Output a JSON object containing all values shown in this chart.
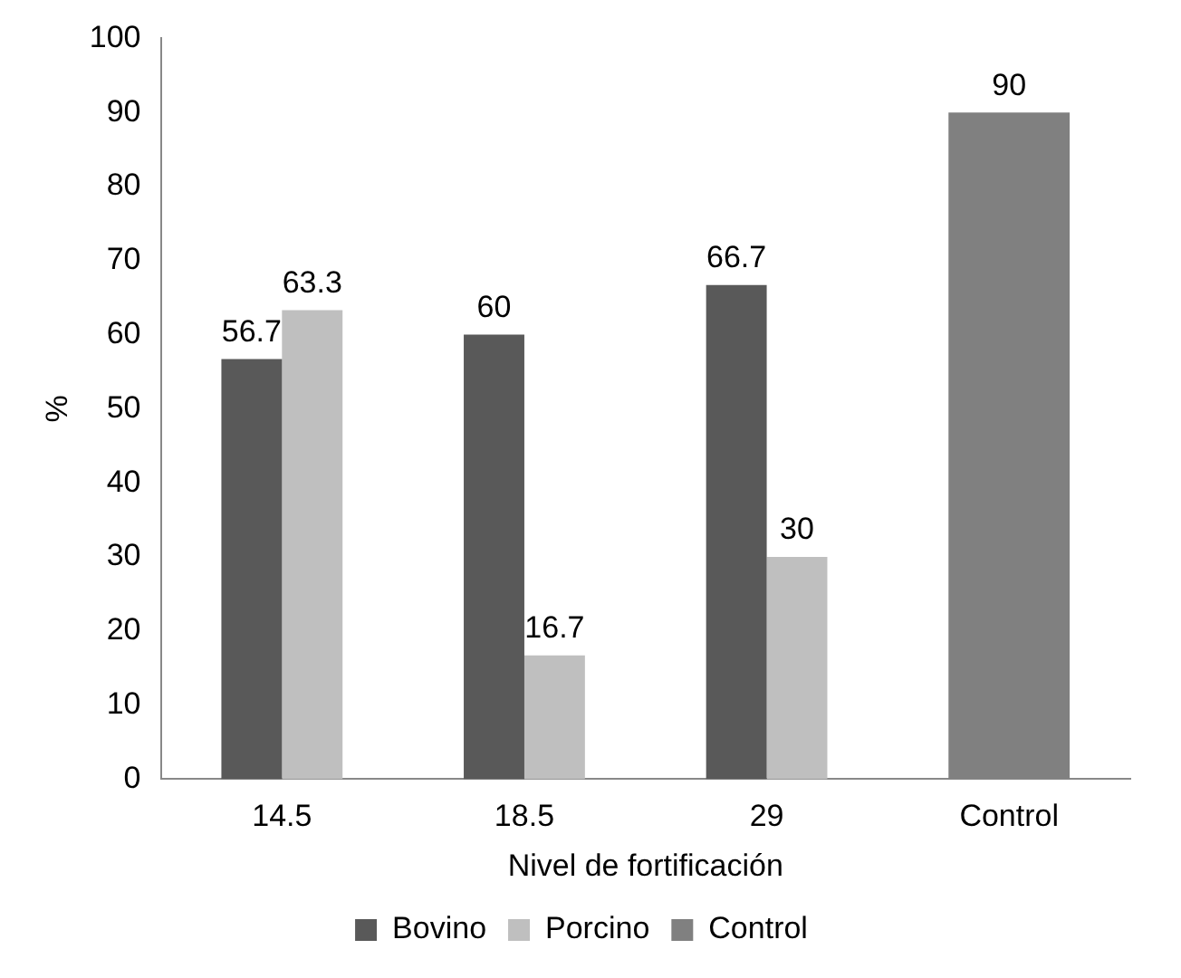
{
  "chart_data": {
    "type": "bar",
    "xlabel": "Nivel de fortificación",
    "ylabel": "%",
    "categories": [
      "14.5",
      "18.5",
      "29",
      "Control"
    ],
    "series": [
      {
        "name": "Bovino",
        "color": "#595959",
        "values": [
          56.7,
          60,
          66.7,
          null
        ]
      },
      {
        "name": "Porcino",
        "color": "#bfbfbf",
        "values": [
          63.3,
          16.7,
          30,
          null
        ]
      },
      {
        "name": "Control",
        "color": "#808080",
        "values": [
          null,
          null,
          null,
          90
        ]
      }
    ],
    "ylim": [
      0,
      100
    ],
    "yticks": [
      0,
      10,
      20,
      30,
      40,
      50,
      60,
      70,
      80,
      90,
      100
    ],
    "grid": false,
    "legend": "bottom",
    "data_labels": true
  }
}
